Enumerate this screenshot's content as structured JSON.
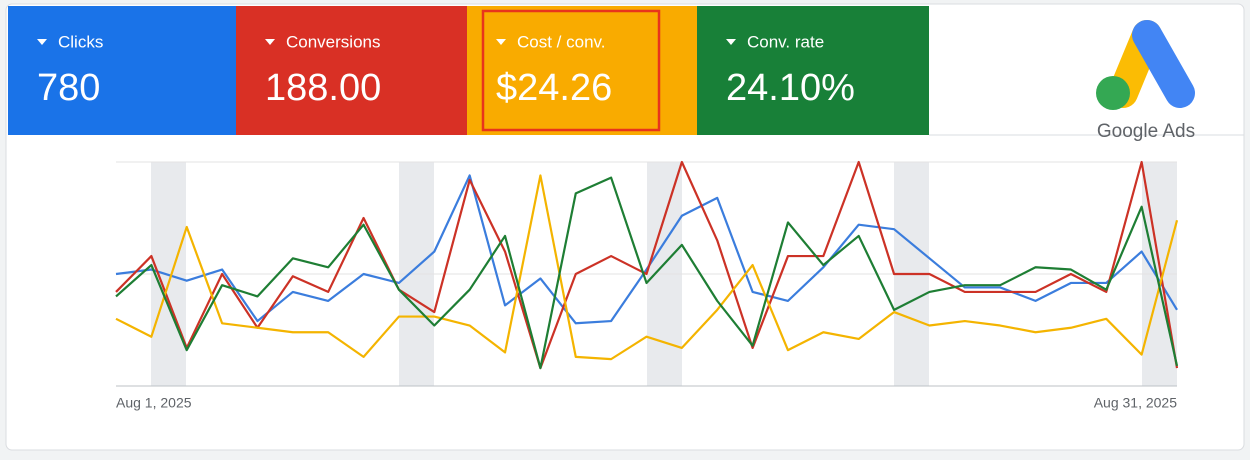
{
  "kpis": [
    {
      "value": "780"
    },
    {
      "value": "188.00"
    },
    {
      "value": "$24.26"
    },
    {
      "value": "24.10%"
    }
  ],
  "logo": "Google Ads",
  "chart_data": {
    "type": "line",
    "categories": [
      "Aug 1, 2025",
      null,
      null,
      null,
      null,
      null,
      null,
      null,
      null,
      null,
      null,
      null,
      null,
      null,
      null,
      null,
      null,
      null,
      null,
      null,
      null,
      null,
      null,
      null,
      null,
      null,
      null,
      null,
      null,
      null,
      "Aug 31, 2025"
    ],
    "ylim": [
      0,
      100
    ],
    "series": [
      {
        "name": "Clicks",
        "color": "#3b7ddd",
        "values": [
          50,
          52,
          47,
          52,
          29,
          42,
          38,
          50,
          46,
          60,
          94,
          36,
          48,
          28,
          29,
          52,
          76,
          84,
          42,
          38,
          53,
          72,
          70,
          57,
          44,
          44,
          38,
          46,
          46,
          60,
          34
        ]
      },
      {
        "name": "Conversions",
        "color": "#cc3226",
        "values": [
          42,
          58,
          17,
          50,
          26,
          49,
          42,
          75,
          43,
          33,
          92,
          60,
          8,
          50,
          58,
          50,
          100,
          65,
          17,
          58,
          58,
          100,
          50,
          50,
          42,
          42,
          42,
          50,
          42,
          100,
          8
        ]
      },
      {
        "name": "Cost / conv.",
        "color": "#f4b400",
        "values": [
          30,
          22,
          71,
          28,
          26,
          24,
          24,
          13,
          31,
          31,
          27,
          15,
          94,
          13,
          12,
          22,
          17,
          34,
          54,
          16,
          24,
          21,
          33,
          27,
          29,
          27,
          24,
          26,
          30,
          14,
          74
        ]
      },
      {
        "name": "Conv. rate",
        "color": "#1e7e34",
        "values": [
          40,
          54,
          16,
          45,
          40,
          57,
          53,
          72,
          43,
          27,
          43,
          67,
          8,
          86,
          93,
          46,
          63,
          38,
          18,
          73,
          54,
          67,
          34,
          42,
          45,
          45,
          53,
          52,
          43,
          80,
          9
        ]
      }
    ]
  }
}
